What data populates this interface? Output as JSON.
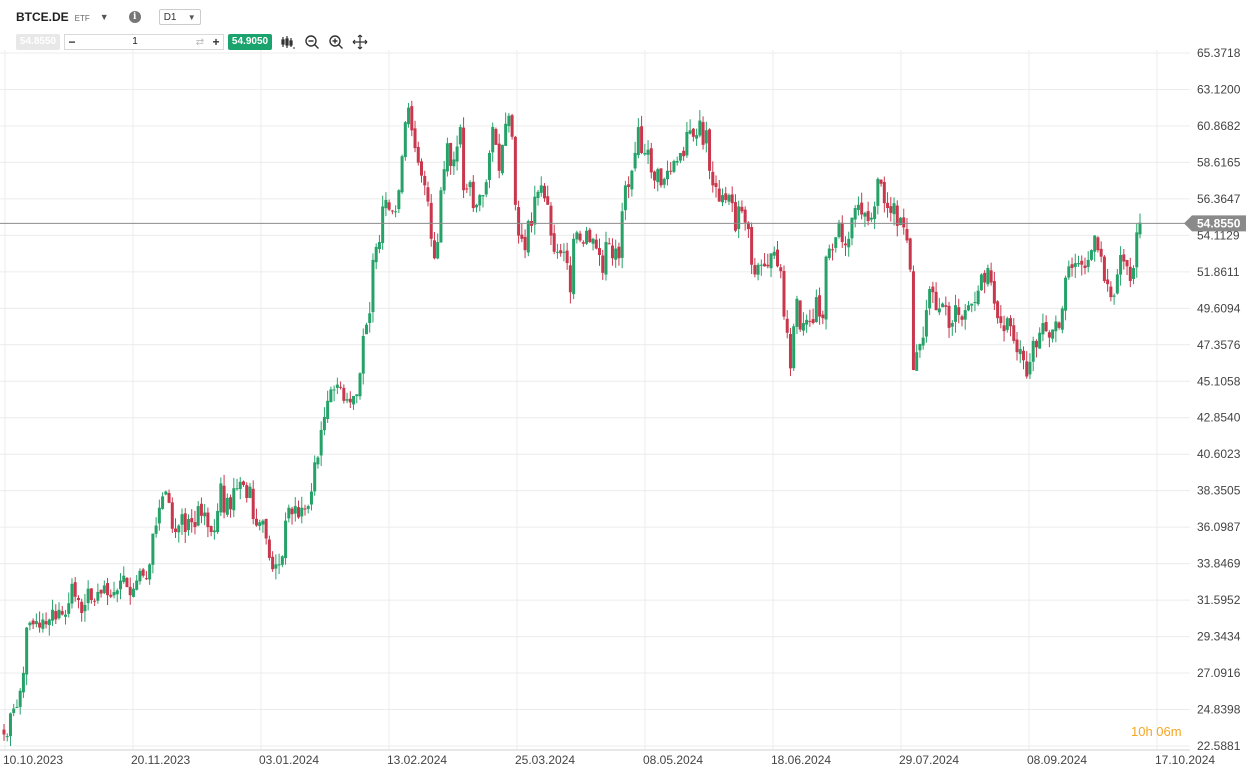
{
  "toolbar": {
    "symbol": "BTCE.DE",
    "symbol_type": "ETF",
    "timeframe": "D1",
    "bid": "54.8550",
    "quantity": "1",
    "ask": "54.9050",
    "icons": [
      "symbol-dropdown-icon",
      "info-icon",
      "timeframe-caret-icon",
      "minus-icon",
      "swap-icon",
      "plus-icon",
      "chart-type-icon",
      "zoom-out-icon",
      "zoom-in-icon",
      "crosshair-icon"
    ]
  },
  "countdown": "10h 06m",
  "colors": {
    "up": "#26a269",
    "down": "#c9374d",
    "price_tag": "#8a8a8a",
    "grid": "#ececec",
    "ask": "#1ba36d"
  },
  "chart_data": {
    "type": "candlestick",
    "y_ticks": [
      "65.3718",
      "63.1200",
      "60.8682",
      "58.6165",
      "56.3647",
      "54.1129",
      "51.8611",
      "49.6094",
      "47.3576",
      "45.1058",
      "42.8540",
      "40.6023",
      "38.3505",
      "36.0987",
      "33.8469",
      "31.5952",
      "29.3434",
      "27.0916",
      "24.8398",
      "22.5881"
    ],
    "y_range": [
      22.5881,
      65.3718
    ],
    "x_ticks": [
      "10.10.2023",
      "20.11.2023",
      "03.01.2024",
      "13.02.2024",
      "25.03.2024",
      "08.05.2024",
      "18.06.2024",
      "29.07.2024",
      "08.09.2024",
      "17.10.2024"
    ],
    "last_price": "54.8550",
    "grid": true,
    "closes": [
      23.3,
      23.2,
      24.6,
      24.9,
      25.0,
      26.0,
      27.1,
      29.9,
      30.2,
      30.1,
      30.3,
      29.9,
      30.4,
      30.1,
      30.4,
      31.0,
      30.4,
      31.0,
      30.7,
      30.7,
      31.4,
      32.6,
      31.8,
      31.6,
      30.8,
      31.3,
      32.3,
      31.6,
      31.5,
      32.1,
      32.0,
      32.5,
      31.9,
      31.8,
      32.1,
      32.2,
      32.8,
      33.1,
      32.4,
      31.9,
      32.3,
      32.8,
      33.4,
      33.1,
      32.9,
      33.8,
      35.7,
      36.2,
      37.3,
      38.0,
      38.3,
      37.6,
      36.0,
      35.8,
      36.2,
      36.9,
      35.8,
      36.6,
      36.4,
      36.1,
      37.4,
      36.8,
      37.0,
      36.1,
      35.8,
      35.9,
      37.1,
      38.8,
      37.0,
      37.9,
      37.2,
      38.5,
      38.5,
      38.9,
      38.7,
      37.9,
      38.6,
      36.6,
      36.2,
      36.4,
      36.5,
      35.4,
      34.2,
      33.5,
      33.8,
      33.8,
      34.3,
      36.5,
      37.3,
      36.9,
      37.4,
      36.7,
      37.3,
      37.2,
      37.4,
      38.3,
      40.1,
      40.4,
      42.1,
      42.9,
      43.9,
      44.6,
      44.6,
      44.9,
      44.7,
      43.9,
      44.0,
      43.8,
      44.2,
      44.3,
      45.6,
      47.9,
      48.6,
      49.3,
      52.6,
      53.4,
      53.7,
      55.9,
      56.3,
      55.7,
      55.6,
      55.6,
      56.9,
      59.0,
      61.1,
      62.0,
      60.6,
      59.5,
      58.6,
      57.8,
      57.2,
      56.2,
      53.9,
      52.7,
      53.7,
      56.9,
      58.2,
      59.8,
      58.4,
      58.8,
      59.6,
      60.8,
      56.9,
      57.0,
      57.4,
      55.8,
      56.0,
      56.6,
      56.6,
      57.4,
      59.2,
      60.8,
      59.7,
      58.1,
      59.7,
      61.0,
      61.5,
      60.2,
      56.0,
      54.1,
      53.9,
      53.2,
      55.0,
      54.7,
      56.5,
      56.8,
      57.2,
      56.4,
      56.0,
      54.1,
      53.1,
      53.1,
      53.0,
      53.1,
      52.4,
      50.6,
      53.9,
      54.3,
      53.8,
      53.6,
      54.4,
      53.7,
      53.9,
      53.3,
      52.9,
      51.8,
      53.7,
      53.6,
      52.7,
      53.3,
      52.7,
      55.6,
      57.2,
      57.1,
      58.1,
      59.2,
      60.8,
      59.2,
      59.2,
      59.4,
      58.0,
      57.5,
      58.2,
      57.2,
      57.6,
      58.1,
      58.1,
      58.7,
      58.7,
      59.2,
      59.0,
      60.5,
      60.6,
      60.2,
      60.3,
      61.2,
      59.7,
      60.6,
      58.1,
      57.2,
      57.1,
      56.2,
      56.6,
      56.3,
      56.6,
      56.1,
      54.4,
      55.9,
      55.6,
      54.9,
      54.5,
      52.3,
      51.7,
      52.3,
      52.3,
      52.2,
      52.2,
      53.0,
      53.1,
      52.2,
      51.9,
      49.1,
      48.1,
      45.9,
      48.5,
      50.2,
      48.3,
      48.7,
      48.9,
      48.8,
      48.7,
      50.3,
      49.1,
      49.0,
      52.8,
      53.3,
      53.2,
      54.0,
      54.9,
      53.7,
      53.5,
      53.9,
      55.2,
      55.8,
      56.0,
      55.4,
      55.5,
      55.0,
      55.2,
      55.9,
      57.6,
      57.3,
      56.1,
      55.8,
      55.5,
      56.1,
      54.7,
      55.2,
      54.6,
      53.8,
      52.0,
      45.8,
      46.9,
      47.4,
      47.8,
      49.5,
      50.8,
      50.6,
      49.5,
      49.6,
      49.9,
      49.7,
      48.4,
      48.7,
      49.8,
      49.2,
      48.9,
      49.5,
      49.8,
      49.9,
      50.0,
      50.7,
      51.7,
      51.2,
      52.1,
      51.2,
      49.9,
      49.0,
      48.7,
      48.2,
      49.0,
      48.5,
      47.6,
      46.9,
      47.1,
      46.4,
      45.4,
      46.3,
      47.6,
      47.2,
      48.1,
      48.7,
      48.2,
      47.8,
      48.3,
      48.8,
      48.4,
      49.6,
      51.5,
      52.2,
      52.1,
      52.4,
      52.4,
      52.3,
      52.1,
      52.6,
      53.2,
      54.1,
      53.2,
      52.8,
      51.3,
      51.1,
      50.3,
      50.4,
      51.7,
      52.9,
      52.5,
      52.2,
      51.3,
      52.1,
      54.3,
      54.9
    ]
  }
}
